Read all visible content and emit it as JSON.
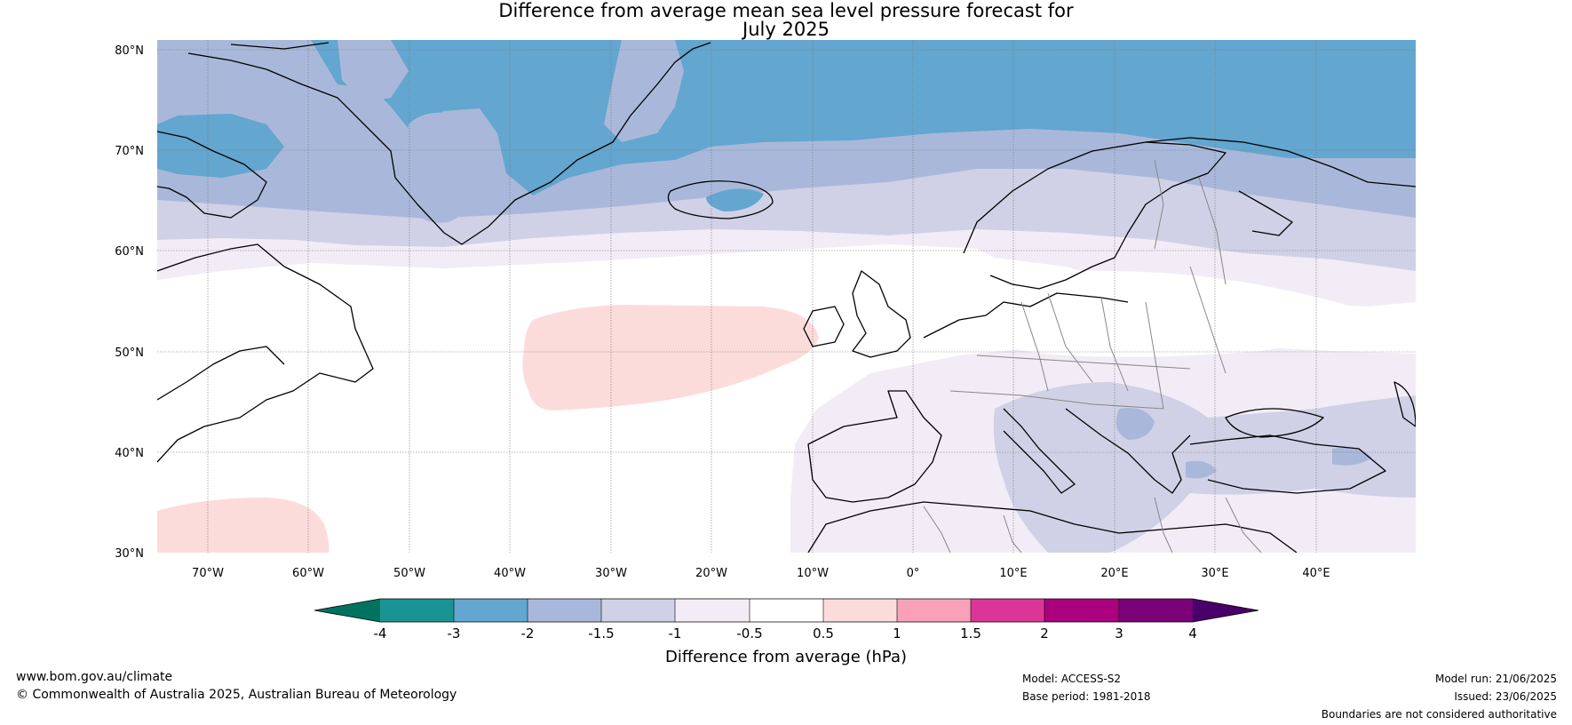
{
  "title": {
    "line1": "Difference from average mean sea level pressure forecast for",
    "line2": "July 2025"
  },
  "map": {
    "lat_labels": [
      "80°N",
      "70°N",
      "60°N",
      "50°N",
      "40°N",
      "30°N"
    ],
    "lon_labels": [
      "70°W",
      "60°W",
      "50°W",
      "40°W",
      "30°W",
      "20°W",
      "10°W",
      "0°",
      "10°E",
      "20°E",
      "30°E",
      "40°E"
    ],
    "extent": {
      "lon_min": -75,
      "lon_max": 50,
      "lat_min": 30,
      "lat_max": 81
    }
  },
  "colorbar": {
    "title": "Difference from average (hPa)",
    "tick_labels": [
      "-4",
      "-3",
      "-2",
      "-1.5",
      "-1",
      "-0.5",
      "0.5",
      "1",
      "1.5",
      "2",
      "3",
      "4"
    ],
    "colors": [
      "#00735f",
      "#1a9393",
      "#63a6cf",
      "#a9b8da",
      "#d0d1e6",
      "#f2ecf6",
      "#ffffff",
      "#fcdcdb",
      "#f9a1b8",
      "#dd3597",
      "#ab017f",
      "#7a0177",
      "#49006a"
    ]
  },
  "footer": {
    "website": "www.bom.gov.au/climate",
    "copyright": "© Commonwealth of Australia 2025, Australian Bureau of Meteorology",
    "model": "Model: ACCESS-S2",
    "base_period": "Base period: 1981-2018",
    "model_run": "Model run: 21/06/2025",
    "issued": "Issued: 23/06/2025",
    "disclaimer": "Boundaries are not considered authoritative"
  }
}
